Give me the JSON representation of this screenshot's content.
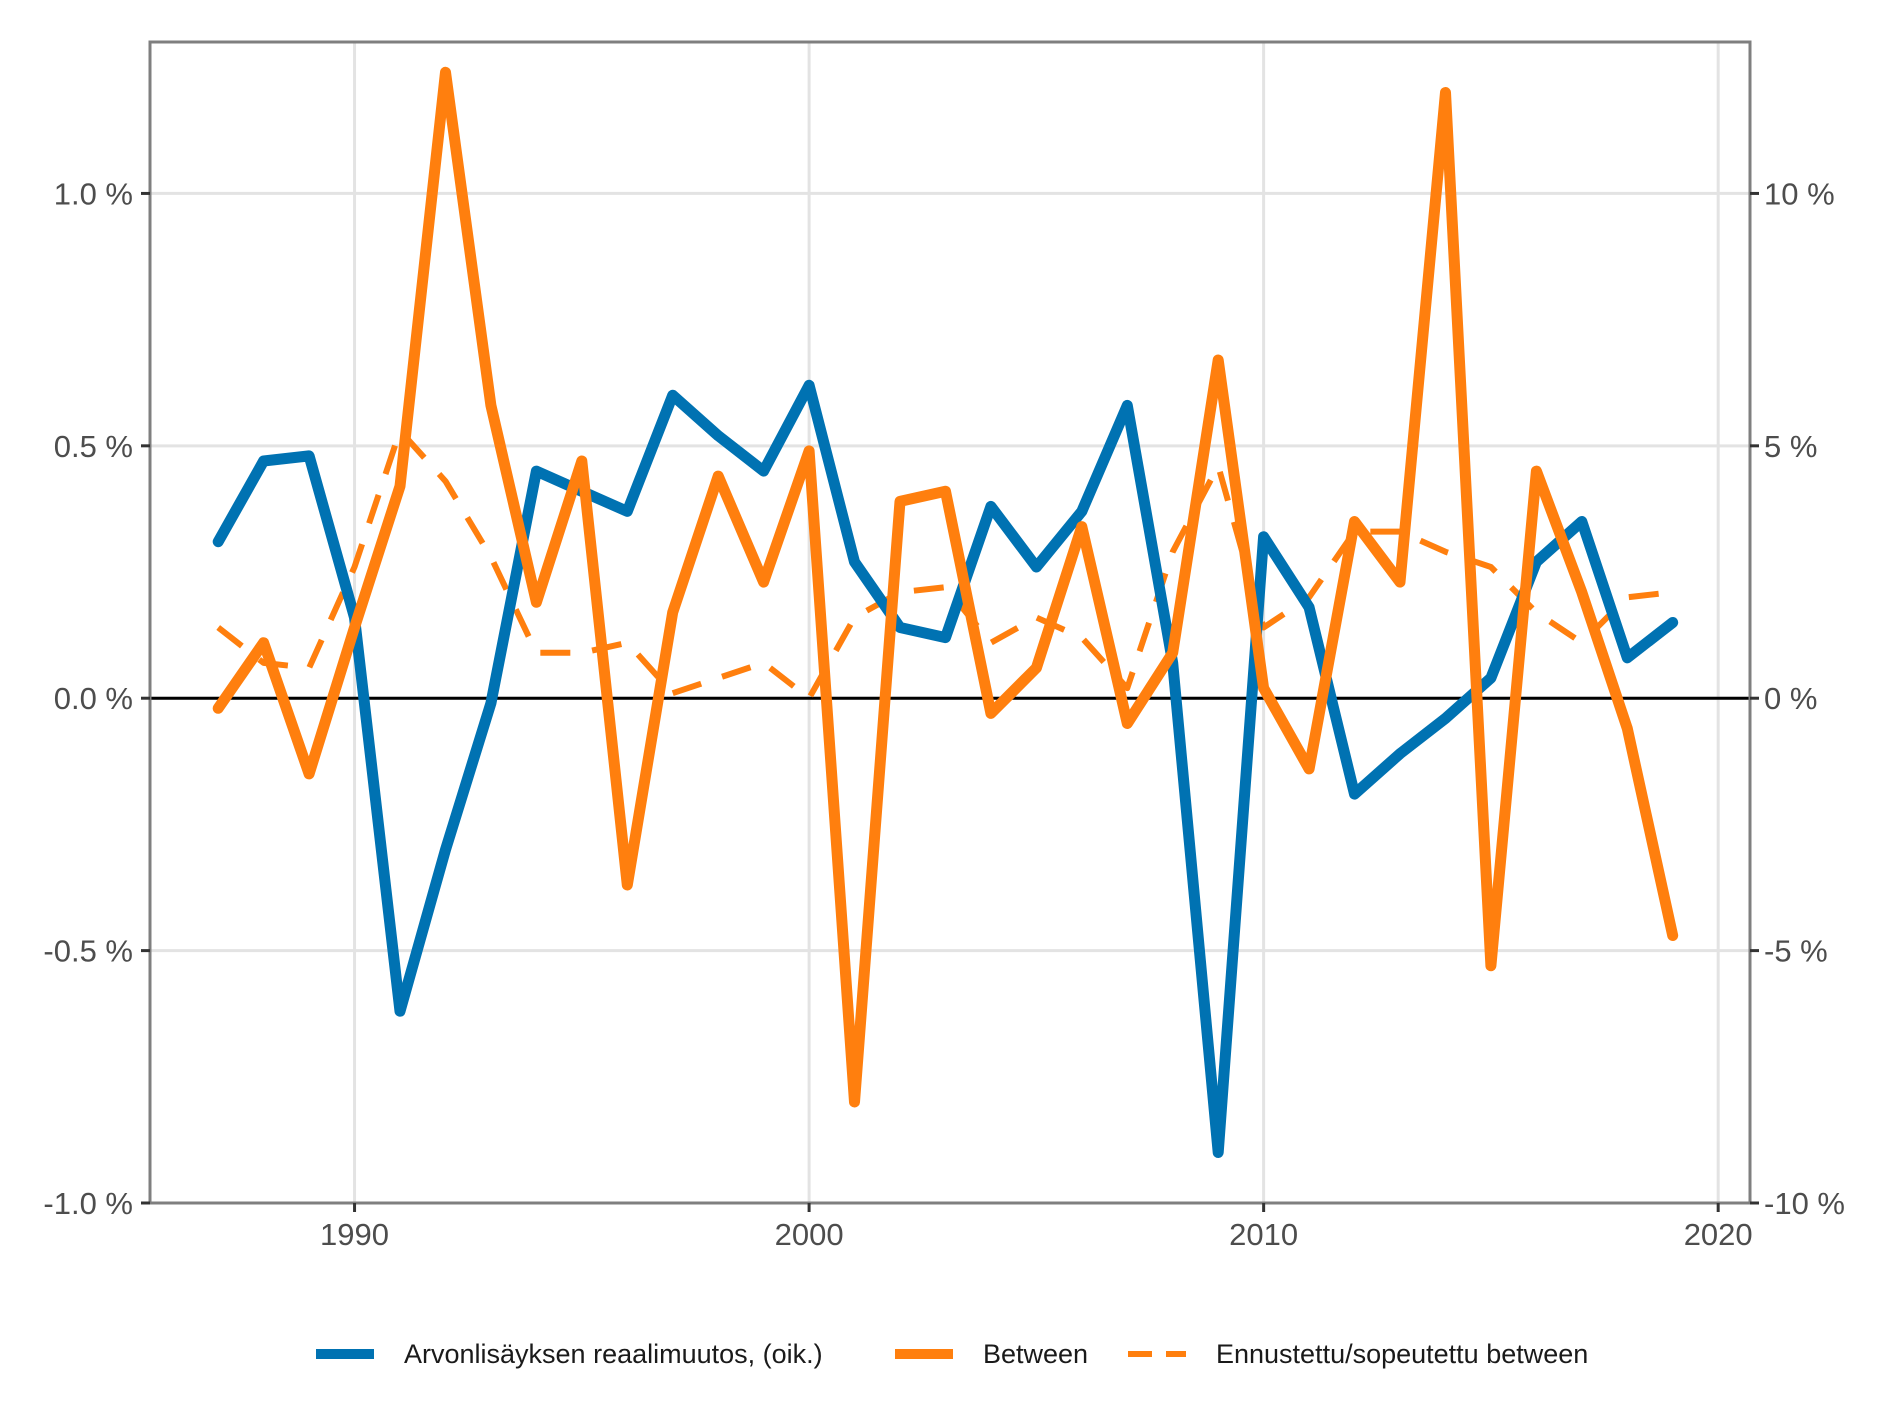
{
  "chart_data": {
    "type": "line",
    "title": "",
    "xlabel": "",
    "ylabel": "",
    "xlim": [
      1985.5,
      2020.7
    ],
    "ylim_left": [
      -1.0,
      1.3
    ],
    "ylim_right": [
      -10,
      13
    ],
    "grid": true,
    "legend_position": "bottom",
    "x_ticks": [
      1990,
      2000,
      2010,
      2020
    ],
    "x_tick_labels": [
      "1990",
      "2000",
      "2010",
      "2020"
    ],
    "y_left_ticks": [
      -1.0,
      -0.5,
      0.0,
      0.5,
      1.0
    ],
    "y_left_tick_labels": [
      "-1.0 %",
      "-0.5 %",
      "0.0 %",
      "0.5 %",
      "1.0 %"
    ],
    "y_right_ticks": [
      -10,
      -5,
      0,
      5,
      10
    ],
    "y_right_tick_labels": [
      "-10 %",
      "-5 %",
      "0 %",
      "5 %",
      "10 %"
    ],
    "series": [
      {
        "name": "Arvonlisäyksen reaalimuutos, (oik.)",
        "axis": "right",
        "color": "#0072B2",
        "dash": "solid",
        "x": [
          1987,
          1988,
          1989,
          1990,
          1991,
          1992,
          1993,
          1994,
          1995,
          1996,
          1997,
          1998,
          1999,
          2000,
          2001,
          2002,
          2003,
          2004,
          2005,
          2006,
          2007,
          2008,
          2009,
          2010,
          2011,
          2012,
          2013,
          2014,
          2015,
          2016,
          2017,
          2018,
          2019
        ],
        "values": [
          3.1,
          4.7,
          4.8,
          1.6,
          -6.2,
          -3.0,
          -0.1,
          4.5,
          4.1,
          3.7,
          6.0,
          5.2,
          4.5,
          6.2,
          2.7,
          1.4,
          1.2,
          3.8,
          2.6,
          3.7,
          5.8,
          0.7,
          -9.0,
          3.2,
          1.8,
          -1.9,
          -1.1,
          -0.4,
          0.4,
          2.7,
          3.5,
          0.8,
          1.5
        ]
      },
      {
        "name": "Between",
        "axis": "left",
        "color": "#FF7F0E",
        "dash": "solid",
        "x": [
          1987,
          1988,
          1989,
          1990,
          1991,
          1992,
          1993,
          1994,
          1995,
          1996,
          1997,
          1998,
          1999,
          2000,
          2001,
          2002,
          2003,
          2004,
          2005,
          2006,
          2007,
          2008,
          2009,
          2010,
          2011,
          2012,
          2013,
          2014,
          2015,
          2016,
          2017,
          2018,
          2019
        ],
        "values": [
          -0.02,
          0.11,
          -0.15,
          0.14,
          0.42,
          1.24,
          0.58,
          0.19,
          0.47,
          -0.37,
          0.17,
          0.44,
          0.23,
          0.49,
          -0.8,
          0.39,
          0.41,
          -0.03,
          0.06,
          0.34,
          -0.05,
          0.09,
          0.67,
          0.02,
          -0.14,
          0.35,
          0.23,
          1.2,
          -0.53,
          0.45,
          0.21,
          -0.06,
          -0.47
        ]
      },
      {
        "name": "Ennustettu/sopeutettu between",
        "axis": "left",
        "color": "#FF7F0E",
        "dash": "dashed",
        "x": [
          1987,
          1988,
          1989,
          1990,
          1991,
          1992,
          1993,
          1994,
          1995,
          1996,
          1997,
          1998,
          1999,
          2000,
          2001,
          2002,
          2003,
          2004,
          2005,
          2006,
          2007,
          2008,
          2009,
          2010,
          2011,
          2012,
          2013,
          2014,
          2015,
          2016,
          2017,
          2018,
          2019
        ],
        "values": [
          0.14,
          0.07,
          0.06,
          0.26,
          0.53,
          0.43,
          0.28,
          0.09,
          0.09,
          0.11,
          0.01,
          0.04,
          0.07,
          0.0,
          0.16,
          0.21,
          0.22,
          0.11,
          0.16,
          0.12,
          0.02,
          0.29,
          0.46,
          0.14,
          0.2,
          0.33,
          0.33,
          0.29,
          0.26,
          0.17,
          0.11,
          0.2,
          0.21
        ]
      }
    ]
  }
}
